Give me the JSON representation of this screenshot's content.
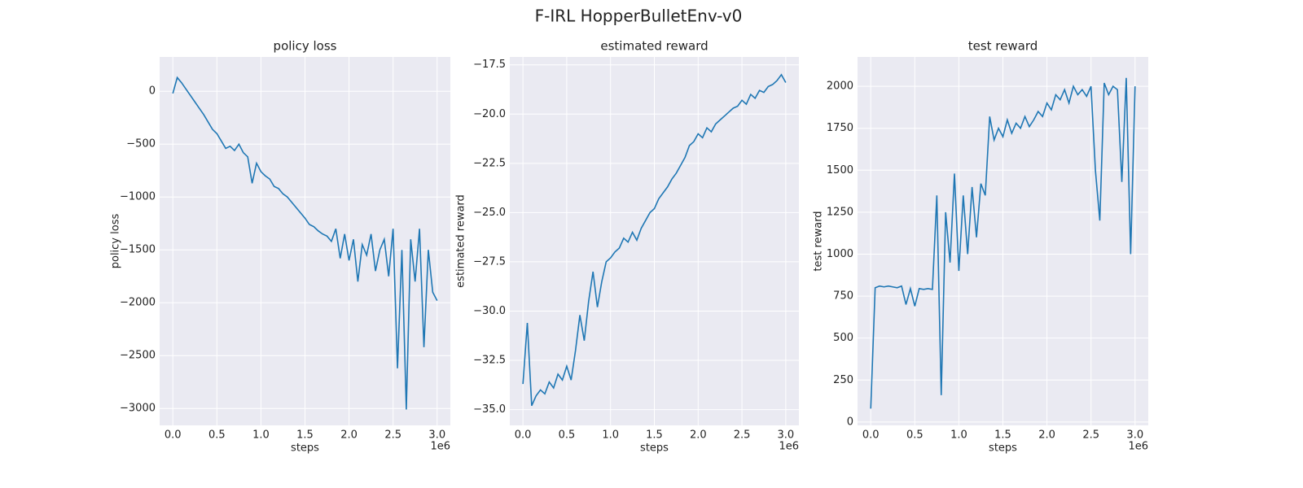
{
  "title": "F-IRL HopperBulletEnv-v0",
  "chart_data": [
    {
      "type": "line",
      "title": "policy loss",
      "xlabel": "steps",
      "ylabel": "policy loss",
      "x_offset_label": "1e6",
      "color": "#1f77b4",
      "grid": true,
      "xlim": [
        -150000,
        3150000
      ],
      "ylim": [
        -3160,
        325
      ],
      "xticks": [
        {
          "value": 0,
          "label": "0.0"
        },
        {
          "value": 500000,
          "label": "0.5"
        },
        {
          "value": 1000000,
          "label": "1.0"
        },
        {
          "value": 1500000,
          "label": "1.5"
        },
        {
          "value": 2000000,
          "label": "2.0"
        },
        {
          "value": 2500000,
          "label": "2.5"
        },
        {
          "value": 3000000,
          "label": "3.0"
        }
      ],
      "yticks": [
        0,
        {
          "value": -500,
          "label": "−500"
        },
        {
          "value": -1000,
          "label": "−1000"
        },
        {
          "value": -1500,
          "label": "−1500"
        },
        {
          "value": -2000,
          "label": "−2000"
        },
        {
          "value": -2500,
          "label": "−2500"
        },
        {
          "value": -3000,
          "label": "−3000"
        }
      ],
      "x": [
        0,
        50000,
        100000,
        150000,
        200000,
        250000,
        300000,
        350000,
        400000,
        450000,
        500000,
        550000,
        600000,
        650000,
        700000,
        750000,
        800000,
        850000,
        900000,
        950000,
        1000000,
        1050000,
        1100000,
        1150000,
        1200000,
        1250000,
        1300000,
        1350000,
        1400000,
        1450000,
        1500000,
        1550000,
        1600000,
        1650000,
        1700000,
        1750000,
        1800000,
        1850000,
        1900000,
        1950000,
        2000000,
        2050000,
        2100000,
        2150000,
        2200000,
        2250000,
        2300000,
        2350000,
        2400000,
        2450000,
        2500000,
        2550000,
        2600000,
        2650000,
        2700000,
        2750000,
        2800000,
        2850000,
        2900000,
        2950000,
        3000000
      ],
      "values": [
        -20,
        130,
        80,
        20,
        -40,
        -100,
        -160,
        -220,
        -290,
        -360,
        -400,
        -470,
        -540,
        -520,
        -560,
        -500,
        -580,
        -620,
        -870,
        -680,
        -760,
        -800,
        -830,
        -900,
        -920,
        -970,
        -1000,
        -1050,
        -1100,
        -1150,
        -1200,
        -1260,
        -1280,
        -1320,
        -1350,
        -1370,
        -1420,
        -1300,
        -1580,
        -1350,
        -1600,
        -1400,
        -1800,
        -1450,
        -1550,
        -1350,
        -1700,
        -1500,
        -1400,
        -1750,
        -1300,
        -2620,
        -1500,
        -3010,
        -1400,
        -1800,
        -1300,
        -2420,
        -1500,
        -1900,
        -1980
      ]
    },
    {
      "type": "line",
      "title": "estimated reward",
      "xlabel": "steps",
      "ylabel": "estimated reward",
      "x_offset_label": "1e6",
      "color": "#1f77b4",
      "grid": true,
      "xlim": [
        -150000,
        3150000
      ],
      "ylim": [
        -35.8,
        -17.1
      ],
      "xticks": [
        {
          "value": 0,
          "label": "0.0"
        },
        {
          "value": 500000,
          "label": "0.5"
        },
        {
          "value": 1000000,
          "label": "1.0"
        },
        {
          "value": 1500000,
          "label": "1.5"
        },
        {
          "value": 2000000,
          "label": "2.0"
        },
        {
          "value": 2500000,
          "label": "2.5"
        },
        {
          "value": 3000000,
          "label": "3.0"
        }
      ],
      "yticks": [
        {
          "value": -17.5,
          "label": "−17.5"
        },
        {
          "value": -20,
          "label": "−20.0"
        },
        {
          "value": -22.5,
          "label": "−22.5"
        },
        {
          "value": -25,
          "label": "−25.0"
        },
        {
          "value": -27.5,
          "label": "−27.5"
        },
        {
          "value": -30,
          "label": "−30.0"
        },
        {
          "value": -32.5,
          "label": "−32.5"
        },
        {
          "value": -35,
          "label": "−35.0"
        }
      ],
      "x": [
        0,
        50000,
        100000,
        150000,
        200000,
        250000,
        300000,
        350000,
        400000,
        450000,
        500000,
        550000,
        600000,
        650000,
        700000,
        750000,
        800000,
        850000,
        900000,
        950000,
        1000000,
        1050000,
        1100000,
        1150000,
        1200000,
        1250000,
        1300000,
        1350000,
        1400000,
        1450000,
        1500000,
        1550000,
        1600000,
        1650000,
        1700000,
        1750000,
        1800000,
        1850000,
        1900000,
        1950000,
        2000000,
        2050000,
        2100000,
        2150000,
        2200000,
        2250000,
        2300000,
        2350000,
        2400000,
        2450000,
        2500000,
        2550000,
        2600000,
        2650000,
        2700000,
        2750000,
        2800000,
        2850000,
        2900000,
        2950000,
        3000000
      ],
      "values": [
        -33.7,
        -30.6,
        -34.8,
        -34.3,
        -34.0,
        -34.2,
        -33.6,
        -33.9,
        -33.2,
        -33.5,
        -32.8,
        -33.5,
        -32.0,
        -30.2,
        -31.5,
        -29.5,
        -28.0,
        -29.8,
        -28.5,
        -27.5,
        -27.3,
        -27.0,
        -26.8,
        -26.3,
        -26.5,
        -26.0,
        -26.4,
        -25.8,
        -25.4,
        -25.0,
        -24.8,
        -24.3,
        -24.0,
        -23.7,
        -23.3,
        -23.0,
        -22.6,
        -22.2,
        -21.6,
        -21.4,
        -21.0,
        -21.2,
        -20.7,
        -20.9,
        -20.5,
        -20.3,
        -20.1,
        -19.9,
        -19.7,
        -19.6,
        -19.3,
        -19.5,
        -19.0,
        -19.2,
        -18.8,
        -18.9,
        -18.6,
        -18.5,
        -18.3,
        -18.0,
        -18.4
      ]
    },
    {
      "type": "line",
      "title": "test reward",
      "xlabel": "steps",
      "ylabel": "test reward",
      "x_offset_label": "1e6",
      "color": "#1f77b4",
      "grid": true,
      "xlim": [
        -150000,
        3150000
      ],
      "ylim": [
        -20,
        2175
      ],
      "xticks": [
        {
          "value": 0,
          "label": "0.0"
        },
        {
          "value": 500000,
          "label": "0.5"
        },
        {
          "value": 1000000,
          "label": "1.0"
        },
        {
          "value": 1500000,
          "label": "1.5"
        },
        {
          "value": 2000000,
          "label": "2.0"
        },
        {
          "value": 2500000,
          "label": "2.5"
        },
        {
          "value": 3000000,
          "label": "3.0"
        }
      ],
      "yticks": [
        0,
        250,
        500,
        750,
        1000,
        1250,
        1500,
        1750,
        2000
      ],
      "x": [
        0,
        50000,
        100000,
        150000,
        200000,
        250000,
        300000,
        350000,
        400000,
        450000,
        500000,
        550000,
        600000,
        650000,
        700000,
        750000,
        800000,
        850000,
        900000,
        950000,
        1000000,
        1050000,
        1100000,
        1150000,
        1200000,
        1250000,
        1300000,
        1350000,
        1400000,
        1450000,
        1500000,
        1550000,
        1600000,
        1650000,
        1700000,
        1750000,
        1800000,
        1850000,
        1900000,
        1950000,
        2000000,
        2050000,
        2100000,
        2150000,
        2200000,
        2250000,
        2300000,
        2350000,
        2400000,
        2450000,
        2500000,
        2550000,
        2600000,
        2650000,
        2700000,
        2750000,
        2800000,
        2850000,
        2900000,
        2950000,
        3000000
      ],
      "values": [
        80,
        800,
        810,
        805,
        810,
        805,
        800,
        810,
        700,
        795,
        690,
        795,
        790,
        795,
        790,
        1350,
        160,
        1250,
        950,
        1480,
        900,
        1350,
        1000,
        1400,
        1100,
        1420,
        1350,
        1820,
        1680,
        1750,
        1700,
        1800,
        1720,
        1780,
        1750,
        1820,
        1760,
        1800,
        1850,
        1820,
        1900,
        1860,
        1950,
        1920,
        1980,
        1900,
        2000,
        1950,
        1980,
        1940,
        2000,
        1500,
        1200,
        2020,
        1950,
        2000,
        1980,
        1430,
        2050,
        1000,
        2000
      ]
    }
  ]
}
